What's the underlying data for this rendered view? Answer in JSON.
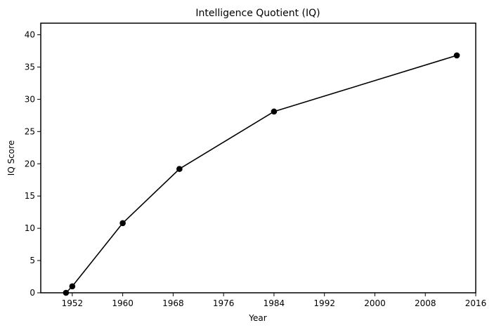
{
  "chart_data": {
    "type": "line",
    "title": "Intelligence Quotient (IQ)",
    "xlabel": "Year",
    "ylabel": "IQ Score",
    "xlim": [
      1947,
      2016
    ],
    "ylim": [
      0,
      41.8
    ],
    "xticks": [
      1952,
      1960,
      1968,
      1976,
      1984,
      1992,
      2000,
      2008,
      2016
    ],
    "yticks": [
      0,
      5,
      10,
      15,
      20,
      25,
      30,
      35,
      40
    ],
    "grid": false,
    "series": [
      {
        "color": "#000000",
        "marker": "circle",
        "x": [
          1951,
          1952,
          1960,
          1969,
          1984,
          2013
        ],
        "y": [
          0,
          1.0,
          10.8,
          19.2,
          28.1,
          36.8
        ]
      }
    ]
  }
}
